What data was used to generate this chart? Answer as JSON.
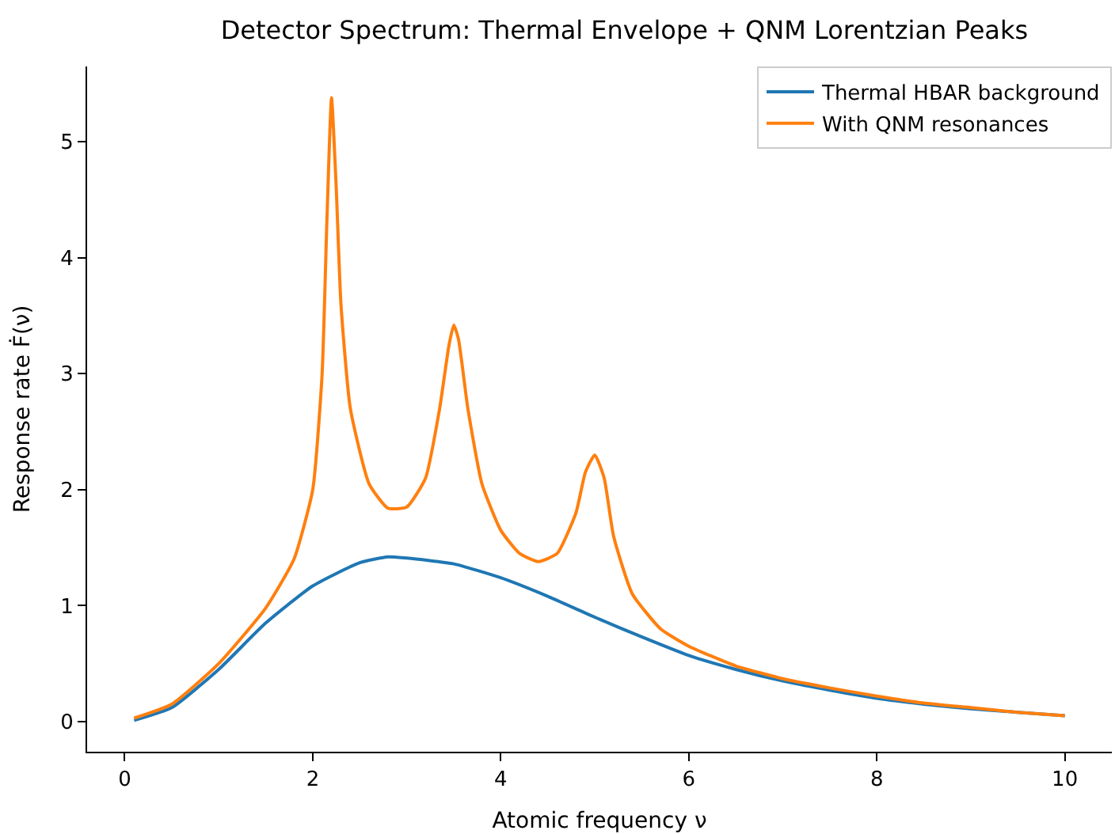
{
  "chart_data": {
    "type": "line",
    "title": "Detector Spectrum: Thermal Envelope + QNM Lorentzian Peaks",
    "xlabel": "Atomic frequency ν",
    "ylabel": "Response rate Ḟ(ν)",
    "xlim": [
      -0.4,
      10.5
    ],
    "ylim": [
      -0.26,
      5.65
    ],
    "xticks": [
      0,
      2,
      4,
      6,
      8,
      10
    ],
    "yticks": [
      0,
      1,
      2,
      3,
      4,
      5
    ],
    "legend": "top right",
    "marker": "none",
    "line_style": "solid",
    "series": [
      {
        "name": "Thermal HBAR background",
        "color": "#1f77b4",
        "x": [
          0.1,
          0.5,
          1,
          1.5,
          2,
          2.5,
          2.8,
          3,
          3.5,
          4,
          4.5,
          5,
          5.5,
          6,
          6.5,
          7,
          7.5,
          8,
          8.5,
          9,
          9.5,
          10
        ],
        "values": [
          0.01,
          0.12,
          0.45,
          0.85,
          1.17,
          1.37,
          1.42,
          1.41,
          1.36,
          1.24,
          1.08,
          0.9,
          0.73,
          0.57,
          0.45,
          0.35,
          0.27,
          0.2,
          0.15,
          0.11,
          0.08,
          0.05
        ]
      },
      {
        "name": "With QNM resonances",
        "color": "#ff7f0e",
        "x": [
          0.1,
          0.5,
          1,
          1.5,
          1.8,
          2.0,
          2.1,
          2.15,
          2.2,
          2.25,
          2.3,
          2.4,
          2.6,
          2.8,
          3.0,
          3.2,
          3.35,
          3.45,
          3.5,
          3.55,
          3.65,
          3.8,
          4.0,
          4.2,
          4.4,
          4.6,
          4.8,
          4.9,
          5.0,
          5.1,
          5.2,
          5.4,
          5.7,
          6,
          6.5,
          7,
          7.5,
          8,
          8.5,
          9,
          9.5,
          10
        ],
        "values": [
          0.03,
          0.15,
          0.5,
          0.98,
          1.4,
          2.0,
          3.0,
          4.3,
          5.38,
          4.6,
          3.6,
          2.7,
          2.05,
          1.84,
          1.85,
          2.1,
          2.7,
          3.25,
          3.42,
          3.3,
          2.7,
          2.05,
          1.65,
          1.45,
          1.38,
          1.45,
          1.8,
          2.15,
          2.3,
          2.1,
          1.6,
          1.1,
          0.8,
          0.65,
          0.48,
          0.37,
          0.29,
          0.22,
          0.16,
          0.12,
          0.08,
          0.05
        ]
      }
    ]
  }
}
